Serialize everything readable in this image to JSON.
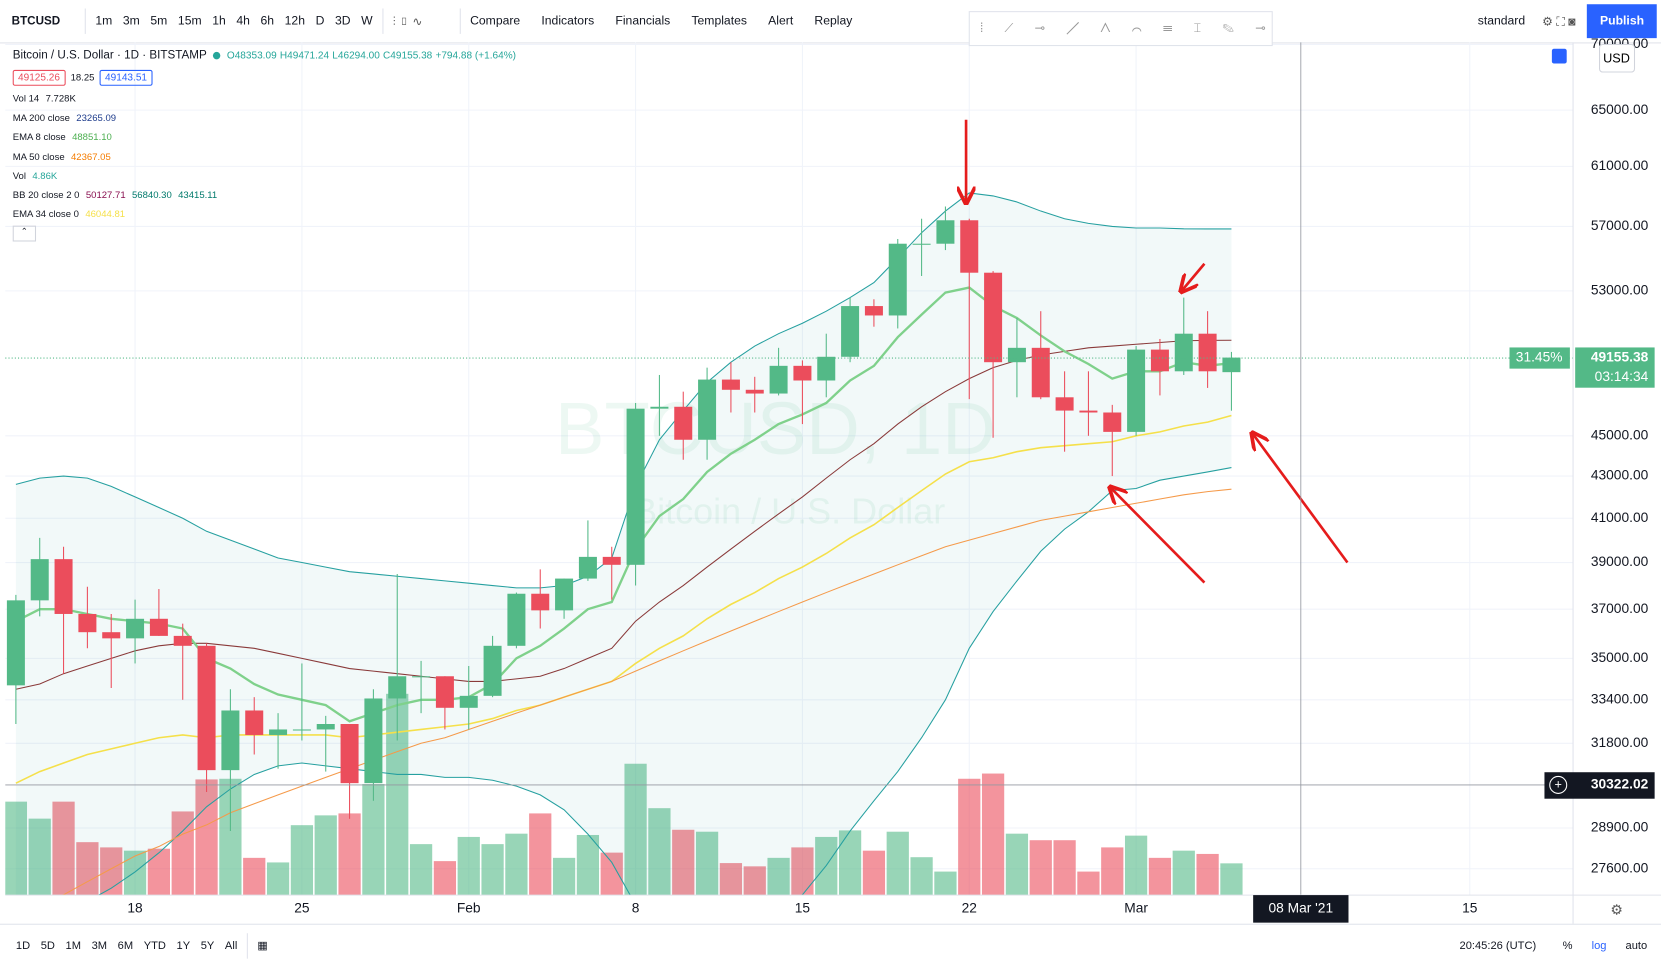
{
  "toolbar": {
    "symbol": "BTCUSD",
    "intervals": [
      "1m",
      "3m",
      "5m",
      "15m",
      "1h",
      "4h",
      "6h",
      "12h",
      "D",
      "3D",
      "W"
    ],
    "buttons": [
      "Compare",
      "Indicators",
      "Financials",
      "Templates",
      "Alert",
      "Replay"
    ],
    "layout_name": "standard",
    "publish": "Publish"
  },
  "legend": {
    "title": "Bitcoin / U.S. Dollar · 1D · BITSTAMP",
    "ohlc": [
      "O48353.09",
      "H49471.24",
      "L46294.00",
      "C49155.38",
      "+794.88 (+1.64%)"
    ],
    "sell": "49125.26",
    "spread": "18.25",
    "buy": "49143.51",
    "indicators": [
      {
        "label": "Vol 14",
        "values": [
          "7.728K"
        ],
        "colors": [
          "#131722"
        ]
      },
      {
        "label": "MA 200 close",
        "values": [
          "23265.09"
        ],
        "colors": [
          "#1e3c8c"
        ]
      },
      {
        "label": "EMA 8 close",
        "values": [
          "48851.10"
        ],
        "colors": [
          "#4caf50"
        ]
      },
      {
        "label": "MA 50 close",
        "values": [
          "42367.05"
        ],
        "colors": [
          "#f57c00"
        ]
      },
      {
        "label": "Vol",
        "values": [
          "4.86K"
        ],
        "colors": [
          "#26a69a"
        ]
      },
      {
        "label": "BB 20 close 2 0",
        "values": [
          "50127.71",
          "56840.30",
          "43415.11"
        ],
        "colors": [
          "#880e4f",
          "#00796b",
          "#00796b"
        ]
      },
      {
        "label": "EMA 34 close 0",
        "values": [
          "46044.81"
        ],
        "colors": [
          "#f5e04a"
        ]
      }
    ]
  },
  "watermark": {
    "symbol": "BTCUSD, 1D",
    "description": "Bitcoin / U.S. Dollar"
  },
  "price_scale": {
    "currency": "USD",
    "change_percent": "31.45%",
    "last_price": "49155.38",
    "countdown": "03:14:34",
    "crosshair_price": "30322.02"
  },
  "time_scale": {
    "crosshair_date": "08 Mar '21",
    "future_label": "15"
  },
  "bottom_bar": {
    "ranges": [
      "1D",
      "5D",
      "1M",
      "3M",
      "6M",
      "YTD",
      "1Y",
      "5Y",
      "All"
    ],
    "clock": "20:45:26 (UTC)",
    "percent": "%",
    "log": "log",
    "auto": "auto"
  },
  "chart_data": {
    "type": "candlestick",
    "log_scale": true,
    "grid": true,
    "up_color": "#53b987",
    "down_color": "#eb4d5c",
    "volume_unit": "K",
    "categories": [
      null,
      null,
      null,
      null,
      null,
      "18",
      null,
      null,
      null,
      null,
      null,
      null,
      "25",
      null,
      null,
      null,
      null,
      null,
      null,
      "Feb",
      null,
      null,
      null,
      null,
      null,
      null,
      "8",
      null,
      null,
      null,
      null,
      null,
      null,
      "15",
      null,
      null,
      null,
      null,
      null,
      null,
      "22",
      null,
      null,
      null,
      null,
      null,
      null,
      "Mar",
      null,
      null,
      null,
      null
    ],
    "open": [
      33950,
      37370,
      39150,
      36800,
      36050,
      35800,
      36600,
      35900,
      35500,
      30850,
      33000,
      32100,
      32300,
      32300,
      32500,
      30400,
      33450,
      34300,
      34300,
      33100,
      33550,
      35500,
      37650,
      36950,
      38300,
      39250,
      38900,
      46400,
      46500,
      44800,
      47950,
      47400,
      47200,
      48700,
      47900,
      49200,
      52100,
      51550,
      55900,
      55900,
      57400,
      54100,
      48900,
      49700,
      47000,
      46300,
      46200,
      45200,
      49600,
      48400,
      50500,
      48353.09
    ],
    "high": [
      37600,
      40100,
      39700,
      37950,
      36800,
      37400,
      37850,
      36400,
      35600,
      33800,
      33500,
      32900,
      34800,
      32800,
      32500,
      33800,
      38500,
      34900,
      34300,
      34700,
      35900,
      37700,
      38700,
      38300,
      40900,
      39700,
      46700,
      48200,
      47300,
      48600,
      48900,
      48100,
      49700,
      49000,
      50500,
      52600,
      52500,
      56200,
      57500,
      58300,
      57500,
      54200,
      51400,
      51800,
      48400,
      48400,
      46600,
      49800,
      50200,
      52600,
      51800,
      49471.24
    ],
    "low": [
      32500,
      36700,
      34400,
      35400,
      33850,
      34800,
      35900,
      33400,
      30100,
      28800,
      31400,
      30900,
      31900,
      30800,
      29200,
      29800,
      31900,
      32900,
      32300,
      32300,
      33500,
      35400,
      36200,
      36600,
      38200,
      37400,
      38000,
      45000,
      43800,
      43800,
      46200,
      46200,
      47100,
      45600,
      47000,
      48900,
      50900,
      50800,
      53900,
      55500,
      46900,
      44900,
      47000,
      46900,
      44200,
      45000,
      43000,
      45000,
      47100,
      48200,
      47500,
      46294.0
    ],
    "close": [
      37370,
      39150,
      36800,
      36050,
      35800,
      36600,
      35900,
      35500,
      30850,
      33000,
      32100,
      32300,
      32300,
      32500,
      30400,
      33450,
      34300,
      34300,
      33100,
      33550,
      35500,
      37650,
      36950,
      38300,
      39250,
      38900,
      46400,
      46500,
      44800,
      47950,
      47400,
      47200,
      48700,
      47900,
      49200,
      52100,
      51550,
      55900,
      55900,
      57400,
      54100,
      48900,
      49700,
      47000,
      46300,
      46200,
      45200,
      49600,
      48400,
      50500,
      48400,
      49155.38
    ],
    "volume": [
      14.3,
      11.7,
      14.3,
      8.1,
      7.3,
      6.8,
      7.1,
      12.8,
      17.7,
      17.8,
      5.7,
      5.0,
      10.7,
      12.2,
      12.5,
      17.0,
      30.8,
      7.8,
      5.2,
      8.9,
      7.8,
      9.4,
      12.5,
      5.7,
      9.2,
      6.5,
      20.1,
      13.3,
      10.0,
      9.7,
      4.9,
      4.4,
      5.7,
      7.3,
      8.9,
      9.9,
      6.8,
      9.7,
      5.8,
      3.6,
      17.8,
      18.6,
      9.4,
      8.4,
      8.4,
      3.6,
      7.3,
      9.1,
      5.7,
      6.8,
      6.3,
      4.86
    ],
    "series": [
      {
        "color": "#26a0a0",
        "width": 1,
        "values": [
          42600,
          42900,
          43000,
          42900,
          42500,
          42000,
          41500,
          41000,
          40400,
          40000,
          39600,
          39200,
          39000,
          38800,
          38600,
          38500,
          38400,
          38300,
          38200,
          38100,
          38000,
          37900,
          37900,
          38000,
          38400,
          39200,
          42500,
          44800,
          46300,
          47800,
          48900,
          49800,
          50500,
          51100,
          51800,
          52600,
          53500,
          55000,
          56600,
          58000,
          59200,
          59000,
          58600,
          58000,
          57500,
          57200,
          57000,
          56900,
          56900,
          56850,
          56840,
          56840.3
        ]
      },
      {
        "color": "#26a0a0",
        "width": 1,
        "values": [
          25500,
          25800,
          26200,
          26600,
          27000,
          27500,
          28100,
          28800,
          29600,
          30200,
          30700,
          31000,
          31100,
          31000,
          30900,
          30800,
          30700,
          30700,
          30600,
          30600,
          30500,
          30300,
          30000,
          29500,
          28700,
          27800,
          26500,
          25700,
          25500,
          25600,
          25800,
          26000,
          26300,
          26800,
          27700,
          28800,
          29800,
          30800,
          32000,
          33400,
          35400,
          36900,
          38200,
          39500,
          40500,
          41300,
          42300,
          42400,
          42800,
          43000,
          43200,
          43415.11
        ]
      },
      {
        "color": "#8a3a3a",
        "width": 1,
        "values": [
          33800,
          34000,
          34400,
          34700,
          35000,
          35300,
          35500,
          35600,
          35600,
          35500,
          35400,
          35200,
          35000,
          34800,
          34600,
          34500,
          34400,
          34300,
          34200,
          34100,
          34100,
          34200,
          34300,
          34600,
          35000,
          35400,
          36500,
          37300,
          38000,
          38800,
          39600,
          40400,
          41200,
          42000,
          42900,
          43800,
          44600,
          45600,
          46500,
          47300,
          48000,
          48600,
          49000,
          49300,
          49500,
          49700,
          49800,
          49900,
          50000,
          50100,
          50120,
          50127.71
        ]
      },
      {
        "color": "#f5e04a",
        "width": 1.5,
        "values": [
          30400,
          30800,
          31100,
          31400,
          31600,
          31800,
          32000,
          32100,
          32000,
          32100,
          32100,
          32100,
          32100,
          32100,
          32000,
          32100,
          32200,
          32300,
          32400,
          32500,
          32700,
          33000,
          33200,
          33500,
          33800,
          34100,
          34800,
          35400,
          35900,
          36600,
          37200,
          37700,
          38300,
          38800,
          39400,
          40100,
          40700,
          41500,
          42300,
          43100,
          43700,
          43900,
          44200,
          44400,
          44500,
          44600,
          44700,
          45000,
          45200,
          45500,
          45700,
          46044.81
        ]
      },
      {
        "color": "#f59a4a",
        "width": 1,
        "values": [
          26000,
          26400,
          26800,
          27200,
          27600,
          28000,
          28300,
          28700,
          29000,
          29400,
          29700,
          30000,
          30300,
          30600,
          30900,
          31200,
          31500,
          31800,
          32000,
          32300,
          32600,
          32900,
          33200,
          33500,
          33800,
          34100,
          34500,
          34900,
          35300,
          35700,
          36100,
          36500,
          36900,
          37300,
          37700,
          38100,
          38500,
          38900,
          39300,
          39700,
          40000,
          40300,
          40600,
          40900,
          41100,
          41300,
          41500,
          41700,
          41900,
          42100,
          42250,
          42367.05
        ]
      },
      {
        "color": "#7fd18b",
        "width": 2.2,
        "values": [
          36500,
          37000,
          37000,
          36800,
          36600,
          36500,
          36400,
          36200,
          35000,
          34600,
          34000,
          33600,
          33400,
          33200,
          32600,
          32900,
          33200,
          33400,
          33400,
          33500,
          34000,
          35000,
          35500,
          36200,
          37000,
          37300,
          39600,
          41100,
          41900,
          43200,
          44100,
          44800,
          45600,
          46100,
          46700,
          47900,
          48700,
          50300,
          51600,
          52900,
          53200,
          52100,
          51400,
          50400,
          49500,
          48800,
          48000,
          48400,
          48400,
          48900,
          48700,
          48851.1
        ]
      }
    ],
    "ylim": [
      26790,
      70170
    ],
    "yticks": [
      {
        "value": 70000,
        "label": "70000.00"
      },
      {
        "value": 65000,
        "label": "65000.00"
      },
      {
        "value": 61000,
        "label": "61000.00"
      },
      {
        "value": 57000,
        "label": "57000.00"
      },
      {
        "value": 53000,
        "label": "53000.00"
      },
      {
        "value": 45000,
        "label": "45000.00"
      },
      {
        "value": 43000,
        "label": "43000.00"
      },
      {
        "value": 41000,
        "label": "41000.00"
      },
      {
        "value": 39000,
        "label": "39000.00"
      },
      {
        "value": 37000,
        "label": "37000.00"
      },
      {
        "value": 35000,
        "label": "35000.00"
      },
      {
        "value": 33400,
        "label": "33400.00"
      },
      {
        "value": 31800,
        "label": "31800.00"
      },
      {
        "value": 28900,
        "label": "28900.00"
      },
      {
        "value": 27600,
        "label": "27600.00"
      }
    ]
  }
}
